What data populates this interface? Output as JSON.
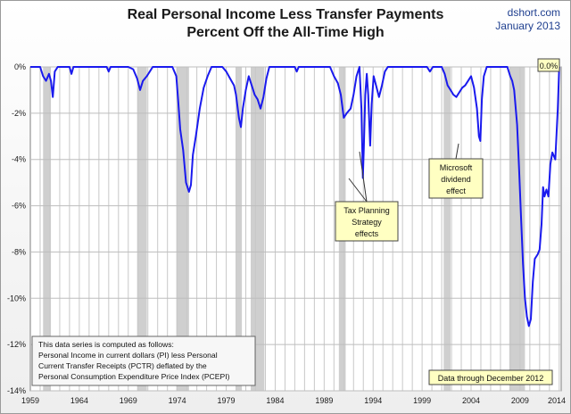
{
  "header": {
    "title_line1": "Real Personal Income Less Transfer Payments",
    "title_line2": "Percent Off the All-Time High",
    "source": "dshort.com",
    "date": "January 2013"
  },
  "chart_data": {
    "type": "line",
    "title": "Real Personal Income Less Transfer Payments Percent Off the All-Time High",
    "xlabel": "",
    "ylabel": "",
    "xlim": [
      1959,
      2013.2
    ],
    "ylim": [
      -14,
      0
    ],
    "grid": true,
    "x_ticks": [
      1959,
      1964,
      1969,
      1974,
      1979,
      1984,
      1989,
      1994,
      1999,
      2004,
      2009,
      2014
    ],
    "y_ticks": [
      0,
      -2,
      -4,
      -6,
      -8,
      -10,
      -12,
      -14
    ],
    "y_tick_labels": [
      "0%",
      "-2%",
      "-4%",
      "-6%",
      "-8%",
      "-10%",
      "-12%",
      "-14%"
    ],
    "recessions": [
      [
        1960.3,
        1961.1
      ],
      [
        1969.9,
        1970.9
      ],
      [
        1973.9,
        1975.2
      ],
      [
        1980.0,
        1980.6
      ],
      [
        1981.5,
        1982.9
      ],
      [
        1990.5,
        1991.2
      ],
      [
        2001.2,
        2001.9
      ],
      [
        2007.9,
        2009.5
      ]
    ],
    "series": [
      {
        "color": "#1a1aee",
        "points": [
          [
            1959.0,
            0
          ],
          [
            1960.0,
            0
          ],
          [
            1960.3,
            -0.4
          ],
          [
            1960.6,
            -0.6
          ],
          [
            1960.9,
            -0.3
          ],
          [
            1961.1,
            -0.6
          ],
          [
            1961.3,
            -1.3
          ],
          [
            1961.5,
            -0.2
          ],
          [
            1961.8,
            0
          ],
          [
            1963.0,
            0
          ],
          [
            1963.2,
            -0.3
          ],
          [
            1963.4,
            0
          ],
          [
            1966.8,
            0
          ],
          [
            1967.0,
            -0.2
          ],
          [
            1967.2,
            0
          ],
          [
            1969.0,
            0
          ],
          [
            1969.5,
            -0.1
          ],
          [
            1969.9,
            -0.5
          ],
          [
            1970.2,
            -1.0
          ],
          [
            1970.5,
            -0.6
          ],
          [
            1970.9,
            -0.4
          ],
          [
            1971.2,
            -0.2
          ],
          [
            1971.5,
            0
          ],
          [
            1973.5,
            0
          ],
          [
            1973.9,
            -0.4
          ],
          [
            1974.1,
            -1.5
          ],
          [
            1974.3,
            -2.7
          ],
          [
            1974.6,
            -3.6
          ],
          [
            1974.9,
            -5.0
          ],
          [
            1975.2,
            -5.4
          ],
          [
            1975.4,
            -5.1
          ],
          [
            1975.6,
            -3.8
          ],
          [
            1975.9,
            -3.0
          ],
          [
            1976.3,
            -1.8
          ],
          [
            1976.7,
            -0.9
          ],
          [
            1977.1,
            -0.4
          ],
          [
            1977.5,
            0
          ],
          [
            1978.6,
            0
          ],
          [
            1979.0,
            -0.2
          ],
          [
            1979.4,
            -0.5
          ],
          [
            1979.8,
            -0.8
          ],
          [
            1980.0,
            -1.2
          ],
          [
            1980.3,
            -2.2
          ],
          [
            1980.5,
            -2.6
          ],
          [
            1980.7,
            -1.8
          ],
          [
            1981.0,
            -1.0
          ],
          [
            1981.3,
            -0.4
          ],
          [
            1981.6,
            -0.8
          ],
          [
            1981.9,
            -1.2
          ],
          [
            1982.2,
            -1.4
          ],
          [
            1982.5,
            -1.8
          ],
          [
            1982.8,
            -1.3
          ],
          [
            1983.1,
            -0.5
          ],
          [
            1983.4,
            0
          ],
          [
            1986.0,
            0
          ],
          [
            1986.2,
            -0.2
          ],
          [
            1986.4,
            0
          ],
          [
            1989.6,
            0
          ],
          [
            1990.0,
            -0.4
          ],
          [
            1990.4,
            -0.7
          ],
          [
            1990.7,
            -1.2
          ],
          [
            1991.0,
            -2.2
          ],
          [
            1991.3,
            -2.0
          ],
          [
            1991.7,
            -1.8
          ],
          [
            1992.0,
            -1.2
          ],
          [
            1992.3,
            -0.4
          ],
          [
            1992.6,
            0
          ],
          [
            1992.8,
            -1.8
          ],
          [
            1992.95,
            -4.8
          ],
          [
            1993.05,
            -3.5
          ],
          [
            1993.2,
            -1.2
          ],
          [
            1993.35,
            -0.3
          ],
          [
            1993.5,
            -1.2
          ],
          [
            1993.7,
            -3.4
          ],
          [
            1993.85,
            -1.6
          ],
          [
            1994.05,
            -0.4
          ],
          [
            1994.3,
            -0.8
          ],
          [
            1994.6,
            -1.3
          ],
          [
            1994.9,
            -0.8
          ],
          [
            1995.2,
            -0.2
          ],
          [
            1995.5,
            0
          ],
          [
            1999.5,
            0
          ],
          [
            1999.8,
            -0.2
          ],
          [
            2000.1,
            0
          ],
          [
            2001.0,
            0
          ],
          [
            2001.3,
            -0.3
          ],
          [
            2001.6,
            -0.8
          ],
          [
            2001.9,
            -1.0
          ],
          [
            2002.2,
            -1.2
          ],
          [
            2002.5,
            -1.3
          ],
          [
            2002.8,
            -1.1
          ],
          [
            2003.1,
            -0.9
          ],
          [
            2003.4,
            -0.8
          ],
          [
            2003.7,
            -0.6
          ],
          [
            2004.0,
            -0.4
          ],
          [
            2004.3,
            -0.9
          ],
          [
            2004.6,
            -1.8
          ],
          [
            2004.8,
            -3.0
          ],
          [
            2004.95,
            -3.2
          ],
          [
            2005.1,
            -1.4
          ],
          [
            2005.3,
            -0.4
          ],
          [
            2005.6,
            0
          ],
          [
            2007.7,
            0
          ],
          [
            2008.0,
            -0.4
          ],
          [
            2008.2,
            -0.6
          ],
          [
            2008.4,
            -1.0
          ],
          [
            2008.7,
            -2.5
          ],
          [
            2008.9,
            -4.4
          ],
          [
            2009.1,
            -6.5
          ],
          [
            2009.3,
            -8.5
          ],
          [
            2009.5,
            -10.0
          ],
          [
            2009.7,
            -10.8
          ],
          [
            2009.9,
            -11.2
          ],
          [
            2010.1,
            -10.9
          ],
          [
            2010.3,
            -9.3
          ],
          [
            2010.5,
            -8.3
          ],
          [
            2010.8,
            -8.1
          ],
          [
            2011.0,
            -7.9
          ],
          [
            2011.2,
            -6.8
          ],
          [
            2011.35,
            -5.2
          ],
          [
            2011.5,
            -5.6
          ],
          [
            2011.7,
            -5.3
          ],
          [
            2011.9,
            -5.6
          ],
          [
            2012.1,
            -4.2
          ],
          [
            2012.3,
            -3.7
          ],
          [
            2012.6,
            -4.0
          ],
          [
            2012.85,
            -1.8
          ],
          [
            2013.0,
            0
          ]
        ]
      }
    ],
    "annotations": [
      {
        "id": "tax",
        "lines": [
          "Tax Planning",
          "Strategy",
          "effects"
        ]
      },
      {
        "id": "msft",
        "lines": [
          "Microsoft",
          "dividend",
          "effect"
        ]
      },
      {
        "id": "end",
        "lines": [
          "0.0%"
        ]
      },
      {
        "id": "through",
        "lines": [
          "Data through December 2012"
        ]
      },
      {
        "id": "note",
        "lines": [
          "This data series is computed as follows:",
          "Personal Income in current dollars  (PI) less Personal",
          "Current Transfer Receipts (PCTR) deflated by the",
          "Personal Consumption Expenditure Price Index (PCEPI)"
        ]
      }
    ]
  }
}
